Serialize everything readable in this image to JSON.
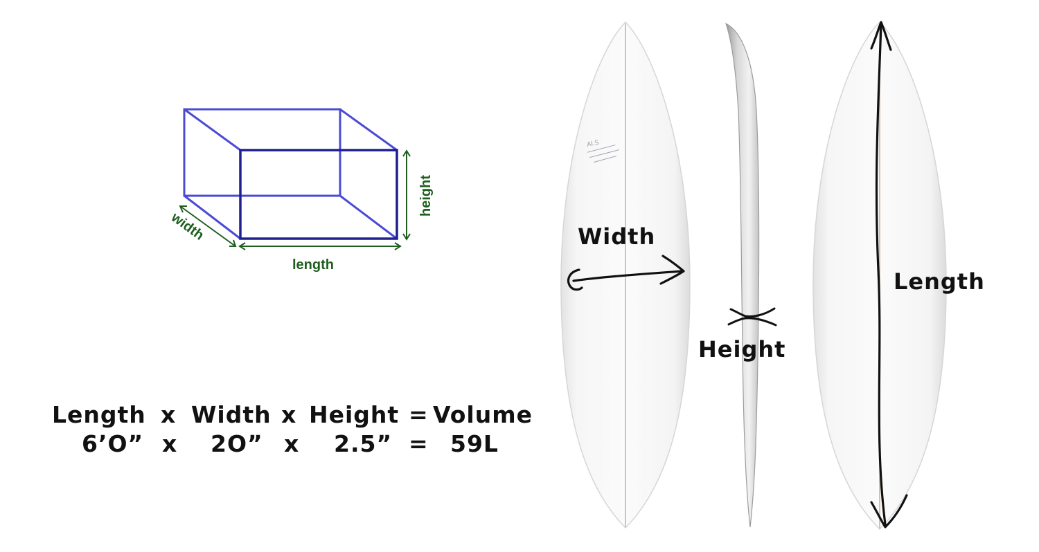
{
  "box_diagram": {
    "width_label": "width",
    "height_label": "height",
    "length_label": "length"
  },
  "formula": {
    "row1": [
      "Length",
      "x",
      "Width",
      "x",
      "Height",
      "=",
      "Volume"
    ],
    "row2": [
      "6’O”",
      "x",
      "2O”",
      "x",
      "2.5”",
      "=",
      "59L"
    ]
  },
  "boards": {
    "width_label": "Width",
    "height_label": "Height",
    "length_label": "Length",
    "board_sketch": "Al.S"
  },
  "colors": {
    "box_front": "#1f1f8f",
    "box_back": "#4a4ad6",
    "box_label": "#1f5e1f",
    "board_fill": "#f3f3f3",
    "stringer": "#c9b49a",
    "ink": "#111111"
  }
}
